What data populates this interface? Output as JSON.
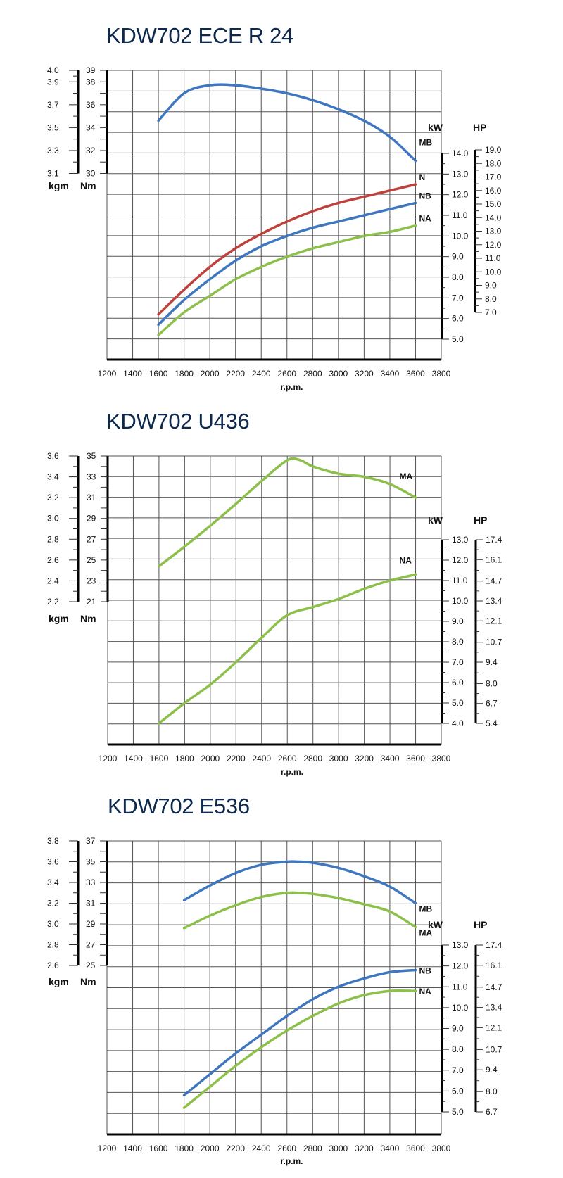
{
  "charts": [
    {
      "title": "KDW702 ECE R 24"
    },
    {
      "title": "KDW702 U436"
    },
    {
      "title": "KDW702 E536"
    }
  ],
  "chart_data": [
    {
      "type": "line",
      "title": "KDW702 ECE R 24",
      "xlabel": "r.p.m.",
      "x_ticks": [
        1200,
        1400,
        1600,
        1800,
        2000,
        2200,
        2400,
        2600,
        2800,
        3000,
        3200,
        3400,
        3600,
        3800
      ],
      "torque_axis": {
        "units": [
          "kgm",
          "Nm"
        ],
        "Nm_ticks": [
          30,
          32,
          34,
          36,
          38,
          39
        ],
        "kgm_ticks": [
          "3.1",
          "3.3",
          "3.5",
          "3.7",
          "3.9",
          "4.0"
        ],
        "Nm_range": [
          30,
          39
        ]
      },
      "power_axis": {
        "units": [
          "kW",
          "HP"
        ],
        "kW_ticks": [
          "5.0",
          "6.0",
          "7.0",
          "8.0",
          "9.0",
          "10.0",
          "11.0",
          "12.0",
          "13.0",
          "14.0"
        ],
        "HP_ticks": [
          "7.0",
          "8.0",
          "9.0",
          "10.0",
          "11.0",
          "12.0",
          "13.0",
          "14.0",
          "15.0",
          "16.0",
          "17.0",
          "18.0",
          "19.0"
        ],
        "kW_range": [
          5,
          14
        ]
      },
      "series": [
        {
          "name": "MB",
          "axis": "torque_Nm",
          "color": "#3f76c0",
          "x": [
            1600,
            1800,
            2000,
            2200,
            2400,
            2600,
            2800,
            3000,
            3200,
            3400,
            3600
          ],
          "y": [
            34.6,
            37.0,
            37.7,
            37.7,
            37.4,
            37.0,
            36.4,
            35.6,
            34.6,
            33.2,
            31.1
          ]
        },
        {
          "name": "N",
          "axis": "power_kW",
          "color": "#c0413b",
          "x": [
            1600,
            1800,
            2000,
            2200,
            2400,
            2600,
            2800,
            3000,
            3200,
            3400,
            3600
          ],
          "y": [
            6.2,
            7.4,
            8.5,
            9.4,
            10.1,
            10.7,
            11.2,
            11.6,
            11.9,
            12.2,
            12.5
          ]
        },
        {
          "name": "NB",
          "axis": "power_kW",
          "color": "#3f76c0",
          "x": [
            1600,
            1800,
            2000,
            2200,
            2400,
            2600,
            2800,
            3000,
            3200,
            3400,
            3600
          ],
          "y": [
            5.7,
            6.9,
            7.9,
            8.8,
            9.5,
            10.0,
            10.4,
            10.7,
            11.0,
            11.3,
            11.6
          ]
        },
        {
          "name": "NA",
          "axis": "power_kW",
          "color": "#8cc04a",
          "x": [
            1600,
            1800,
            2000,
            2200,
            2400,
            2600,
            2800,
            3000,
            3200,
            3400,
            3600
          ],
          "y": [
            5.2,
            6.3,
            7.1,
            7.9,
            8.5,
            9.0,
            9.4,
            9.7,
            10.0,
            10.2,
            10.5
          ]
        }
      ]
    },
    {
      "type": "line",
      "title": "KDW702 U436",
      "xlabel": "r.p.m.",
      "x_ticks": [
        1200,
        1400,
        1600,
        1800,
        2000,
        2200,
        2400,
        2600,
        2800,
        3000,
        3200,
        3400,
        3600,
        3800
      ],
      "torque_axis": {
        "units": [
          "kgm",
          "Nm"
        ],
        "Nm_ticks": [
          21,
          23,
          25,
          27,
          29,
          31,
          33,
          35
        ],
        "kgm_ticks": [
          "2.2",
          "2.4",
          "2.6",
          "2.8",
          "3.0",
          "3.2",
          "3.4",
          "3.6"
        ],
        "Nm_range": [
          21,
          35
        ]
      },
      "power_axis": {
        "units": [
          "kW",
          "HP"
        ],
        "kW_ticks": [
          "4.0",
          "5.0",
          "6.0",
          "7.0",
          "8.0",
          "9.0",
          "10.0",
          "11.0",
          "12.0",
          "13.0"
        ],
        "HP_ticks": [
          "5.4",
          "6.7",
          "8.0",
          "9.4",
          "10.7",
          "12.1",
          "13.4",
          "14.7",
          "16.1",
          "17.4"
        ],
        "kW_range": [
          4,
          13
        ]
      },
      "series": [
        {
          "name": "MA",
          "axis": "torque_Nm",
          "color": "#8cc04a",
          "x": [
            1600,
            1800,
            2000,
            2200,
            2400,
            2600,
            2700,
            2800,
            3000,
            3200,
            3400,
            3600
          ],
          "y": [
            24.4,
            26.3,
            28.3,
            30.4,
            32.6,
            34.6,
            34.6,
            34.0,
            33.3,
            33.0,
            32.3,
            31.0
          ]
        },
        {
          "name": "NA",
          "axis": "power_kW",
          "color": "#8cc04a",
          "x": [
            1600,
            1800,
            2000,
            2200,
            2400,
            2600,
            2800,
            3000,
            3200,
            3400,
            3600
          ],
          "y": [
            4.0,
            5.0,
            5.9,
            7.0,
            8.2,
            9.3,
            9.7,
            10.1,
            10.6,
            11.0,
            11.3
          ]
        }
      ]
    },
    {
      "type": "line",
      "title": "KDW702 E536",
      "xlabel": "r.p.m.",
      "x_ticks": [
        1200,
        1400,
        1600,
        1800,
        2000,
        2200,
        2400,
        2600,
        2800,
        3000,
        3200,
        3400,
        3600,
        3800
      ],
      "torque_axis": {
        "units": [
          "kgm",
          "Nm"
        ],
        "Nm_ticks": [
          25,
          27,
          29,
          31,
          33,
          35,
          37
        ],
        "kgm_ticks": [
          "2.6",
          "2.8",
          "3.0",
          "3.2",
          "3.4",
          "3.6",
          "3.8"
        ],
        "Nm_range": [
          25,
          37
        ]
      },
      "power_axis": {
        "units": [
          "kW",
          "HP"
        ],
        "kW_ticks": [
          "5.0",
          "6.0",
          "7.0",
          "8.0",
          "9.0",
          "10.0",
          "11.0",
          "12.0",
          "13.0"
        ],
        "HP_ticks": [
          "6.7",
          "8.0",
          "9.4",
          "10.7",
          "12.1",
          "13.4",
          "14.7",
          "16.1",
          "17.4"
        ],
        "kW_range": [
          5,
          13
        ]
      },
      "series": [
        {
          "name": "MB",
          "axis": "torque_Nm",
          "color": "#3f76c0",
          "x": [
            1800,
            2000,
            2200,
            2400,
            2600,
            2700,
            2800,
            3000,
            3200,
            3400,
            3600
          ],
          "y": [
            31.3,
            32.7,
            33.9,
            34.7,
            35.0,
            35.0,
            34.9,
            34.4,
            33.6,
            32.6,
            31.0
          ]
        },
        {
          "name": "MA",
          "axis": "torque_Nm",
          "color": "#8cc04a",
          "x": [
            1800,
            2000,
            2200,
            2400,
            2600,
            2700,
            2800,
            3000,
            3200,
            3400,
            3600
          ],
          "y": [
            28.6,
            29.8,
            30.8,
            31.6,
            32.0,
            32.0,
            31.9,
            31.5,
            30.9,
            30.2,
            28.7
          ]
        },
        {
          "name": "NB",
          "axis": "power_kW",
          "color": "#3f76c0",
          "x": [
            1800,
            2000,
            2200,
            2400,
            2600,
            2800,
            3000,
            3200,
            3400,
            3600
          ],
          "y": [
            5.8,
            6.8,
            7.8,
            8.7,
            9.6,
            10.4,
            11.0,
            11.4,
            11.7,
            11.8
          ]
        },
        {
          "name": "NA",
          "axis": "power_kW",
          "color": "#8cc04a",
          "x": [
            1800,
            2000,
            2200,
            2400,
            2600,
            2800,
            3000,
            3200,
            3400,
            3600
          ],
          "y": [
            5.2,
            6.2,
            7.2,
            8.1,
            8.9,
            9.6,
            10.2,
            10.6,
            10.8,
            10.8
          ]
        }
      ]
    }
  ]
}
